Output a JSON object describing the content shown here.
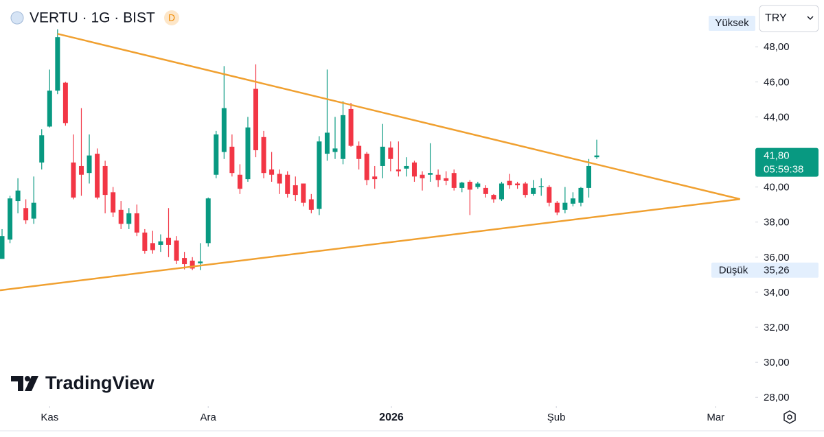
{
  "chart_data": {
    "type": "candlestick",
    "title": "VERTU · 1G · BIST",
    "badge": "D",
    "currency": "TRY",
    "watermark": "TradingView",
    "up_color": "#089981",
    "down_color": "#f23645",
    "open": [
      35.9,
      37.0,
      39.2,
      38.8,
      38.2,
      41.4,
      43.45,
      45.5,
      45.95,
      41.4,
      41.2,
      40.8,
      41.9,
      41.2,
      39.7,
      38.7,
      37.9,
      38.5,
      37.4,
      36.8,
      36.7,
      37.1,
      36.95,
      35.95,
      35.8,
      35.65,
      36.8,
      40.7,
      42.0,
      42.3,
      40.7,
      40.45,
      45.6,
      42.85,
      41.0,
      40.75,
      40.7,
      40.1,
      40.2,
      39.3,
      38.75,
      41.9,
      42.0,
      41.6,
      44.45,
      42.35,
      41.9,
      40.6,
      41.2,
      42.25,
      41.0,
      41.05,
      41.4,
      40.7,
      40.7,
      40.7,
      40.5,
      40.8,
      39.95,
      40.3,
      40.0,
      39.95,
      39.55,
      39.3,
      40.35,
      40.2,
      40.2,
      39.6,
      40.0,
      40.0,
      39.1,
      38.7,
      39.05,
      39.1,
      39.95,
      41.7
    ],
    "high": [
      37.6,
      39.5,
      40.5,
      39.3,
      40.6,
      43.3,
      46.7,
      49.0,
      46.0,
      43.0,
      44.5,
      43.0,
      42.2,
      41.5,
      40.0,
      39.2,
      38.8,
      39.0,
      37.6,
      37.5,
      37.3,
      38.8,
      37.2,
      36.3,
      36.0,
      36.8,
      39.4,
      43.2,
      46.9,
      43.0,
      41.3,
      44.0,
      47.0,
      43.2,
      42.0,
      41.0,
      40.9,
      40.6,
      40.2,
      39.6,
      42.9,
      46.7,
      44.0,
      44.9,
      44.8,
      42.6,
      42.0,
      41.2,
      43.6,
      42.6,
      42.6,
      41.7,
      41.5,
      40.9,
      42.5,
      41.0,
      40.9,
      41.0,
      40.3,
      40.4,
      40.3,
      40.1,
      39.6,
      40.3,
      40.75,
      40.3,
      40.3,
      40.4,
      40.5,
      40.1,
      39.2,
      40.0,
      39.7,
      40.0,
      41.6,
      42.7
    ],
    "low": [
      35.9,
      36.8,
      38.5,
      37.9,
      37.9,
      41.0,
      43.4,
      45.3,
      43.5,
      39.3,
      39.5,
      40.2,
      39.3,
      38.5,
      38.3,
      37.6,
      37.6,
      37.2,
      36.2,
      36.2,
      36.3,
      36.0,
      35.6,
      35.3,
      35.26,
      35.26,
      36.6,
      40.5,
      41.6,
      40.6,
      39.6,
      40.3,
      41.7,
      40.5,
      40.3,
      39.6,
      39.4,
      39.2,
      38.9,
      38.5,
      38.4,
      41.5,
      41.6,
      41.3,
      42.3,
      41.0,
      40.1,
      39.9,
      40.5,
      40.9,
      40.6,
      40.6,
      40.3,
      39.8,
      40.3,
      40.0,
      40.1,
      39.8,
      39.7,
      38.4,
      39.9,
      39.4,
      39.1,
      39.2,
      39.9,
      39.9,
      39.4,
      39.5,
      39.5,
      38.9,
      38.4,
      38.5,
      38.9,
      38.9,
      39.4,
      41.6
    ],
    "close": [
      37.2,
      39.35,
      39.8,
      38.1,
      39.1,
      42.95,
      45.5,
      48.55,
      43.65,
      39.4,
      40.7,
      41.8,
      39.4,
      39.55,
      38.55,
      37.9,
      38.5,
      37.4,
      36.35,
      36.4,
      36.9,
      36.7,
      35.8,
      35.6,
      35.35,
      35.75,
      39.35,
      43.0,
      44.5,
      40.8,
      39.9,
      43.4,
      42.1,
      40.8,
      40.7,
      40.2,
      39.6,
      39.55,
      39.1,
      38.7,
      42.6,
      43.1,
      42.2,
      44.1,
      42.35,
      41.6,
      40.4,
      40.45,
      42.3,
      41.6,
      40.9,
      41.2,
      40.6,
      40.5,
      40.8,
      40.4,
      40.35,
      39.95,
      40.25,
      39.85,
      40.2,
      39.6,
      39.3,
      40.2,
      40.1,
      40.1,
      39.55,
      39.95,
      40.05,
      39.1,
      38.55,
      39.1,
      39.35,
      39.95,
      41.2,
      41.8
    ],
    "xlim": [
      -0.26,
      95
    ],
    "xticks": [
      {
        "value": 6,
        "label": "Kas"
      },
      {
        "value": 26,
        "label": "Ara"
      },
      {
        "value": 49.1,
        "label": "2026"
      },
      {
        "value": 69.9,
        "label": "Şub"
      },
      {
        "value": 90,
        "label": "Mar"
      }
    ],
    "ylim": [
      27.5,
      50.67
    ],
    "yticks": [
      {
        "value": 28,
        "label": "28,00"
      },
      {
        "value": 30,
        "label": "30,00"
      },
      {
        "value": 32,
        "label": "32,00"
      },
      {
        "value": 34,
        "label": "34,00"
      },
      {
        "value": 36,
        "label": "36,00"
      },
      {
        "value": 38,
        "label": "38,00"
      },
      {
        "value": 40,
        "label": "40,00"
      },
      {
        "value": 42,
        "label": "42,00"
      },
      {
        "value": 44,
        "label": "44,00"
      },
      {
        "value": 46,
        "label": "46,00"
      },
      {
        "value": 48,
        "label": "48,00"
      }
    ],
    "trend_color": "#f0a030",
    "trendlines": [
      {
        "x": [
          7,
          93.07
        ],
        "y": [
          48.74,
          39.31
        ]
      },
      {
        "x": [
          -0.26,
          93.07
        ],
        "y": [
          34.11,
          39.31
        ]
      }
    ],
    "high_label": "Yüksek",
    "low_label": "Düşük",
    "low_value": {
      "value": 35.26,
      "label": "35,26"
    },
    "last_price": {
      "value": 41.8,
      "label": "41,80"
    },
    "countdown": "05:59:38"
  }
}
